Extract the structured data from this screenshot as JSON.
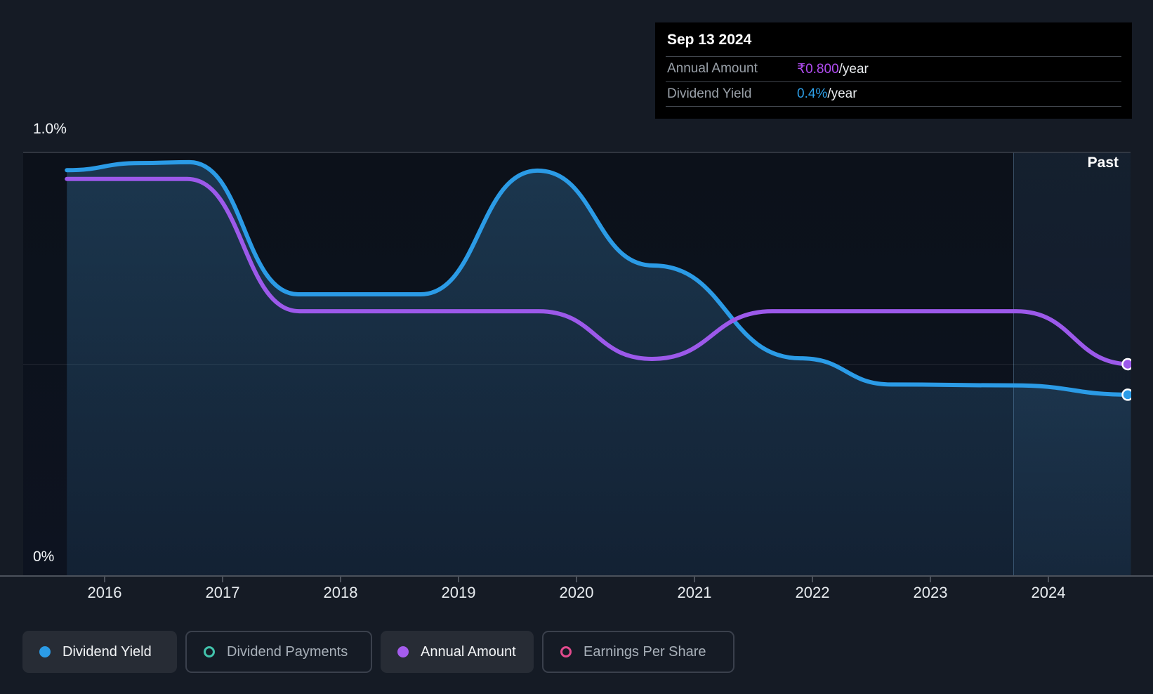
{
  "tooltip": {
    "date": "Sep 13 2024",
    "rows": [
      {
        "label": "Annual Amount",
        "value": "₹0.800",
        "suffix": "/year",
        "color": "#b14cf2"
      },
      {
        "label": "Dividend Yield",
        "value": "0.4%",
        "suffix": "/year",
        "color": "#2d9fe8"
      }
    ]
  },
  "past_label": "Past",
  "chart_data": {
    "type": "area",
    "x_ticks": [
      "2016",
      "2017",
      "2018",
      "2019",
      "2020",
      "2021",
      "2022",
      "2023",
      "2024"
    ],
    "y_ticks": [
      "1.0%",
      "0%"
    ],
    "x_range": [
      2015.68,
      2024.7
    ],
    "grid": "horizontal-only",
    "legend_position": "bottom",
    "past_region_start": 2023.7,
    "series": [
      {
        "name": "Dividend Yield",
        "unit": "%",
        "axis_range": [
          0,
          1.0
        ],
        "color": "#2b9be6",
        "area_fill": true,
        "points": [
          [
            2015.68,
            0.958
          ],
          [
            2016.3,
            0.975
          ],
          [
            2016.72,
            0.977
          ],
          [
            2017.64,
            0.665
          ],
          [
            2018.68,
            0.665
          ],
          [
            2019.67,
            0.957
          ],
          [
            2020.65,
            0.733
          ],
          [
            2021.9,
            0.514
          ],
          [
            2022.67,
            0.452
          ],
          [
            2023.7,
            0.45
          ],
          [
            2024.7,
            0.428
          ]
        ]
      },
      {
        "name": "Annual Amount",
        "unit": "₹/year",
        "axis_range": [
          0,
          1.6
        ],
        "color": "#9c59ea",
        "area_fill": false,
        "points": [
          [
            2015.68,
            1.5
          ],
          [
            2016.7,
            1.5
          ],
          [
            2017.65,
            1.0
          ],
          [
            2019.68,
            1.0
          ],
          [
            2020.64,
            0.82
          ],
          [
            2021.66,
            1.0
          ],
          [
            2023.73,
            1.0
          ],
          [
            2024.7,
            0.8
          ]
        ]
      }
    ]
  },
  "legend": [
    {
      "label": "Dividend Yield",
      "color": "#2b9be6",
      "icon": "dot",
      "active": true
    },
    {
      "label": "Dividend Payments",
      "color": "#42c3ac",
      "icon": "ring",
      "active": false
    },
    {
      "label": "Annual Amount",
      "color": "#a55ced",
      "icon": "dot",
      "active": true
    },
    {
      "label": "Earnings Per Share",
      "color": "#e24a8d",
      "icon": "ring",
      "active": false
    }
  ],
  "colors": {
    "background": "#151b25",
    "plot_background": "#0c111a",
    "grid_top": "#3b414b",
    "axis": "#4b515b",
    "past_overlay": "rgba(92,160,224,0.10)",
    "tooltip_background": "#000000"
  }
}
